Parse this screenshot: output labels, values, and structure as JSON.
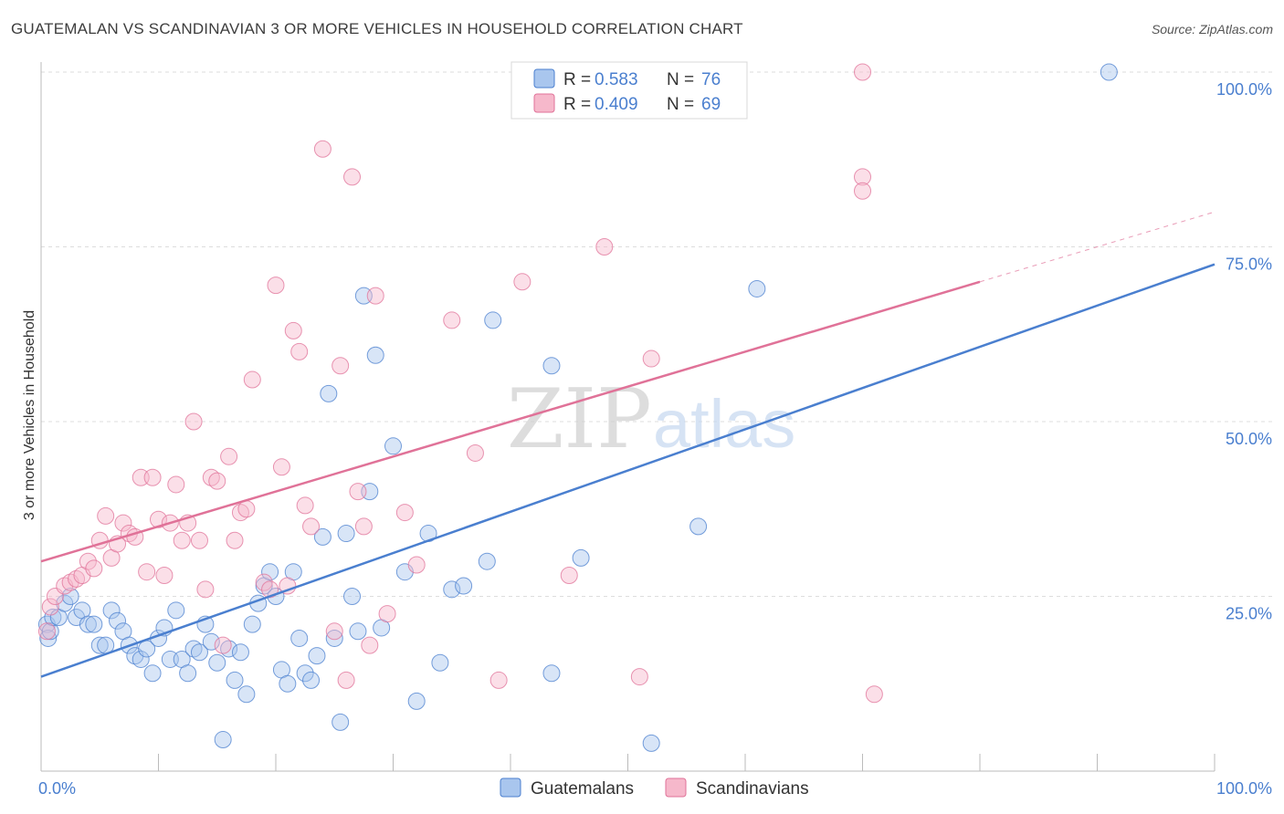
{
  "header": {
    "title": "GUATEMALAN VS SCANDINAVIAN 3 OR MORE VEHICLES IN HOUSEHOLD CORRELATION CHART",
    "source": "Source: ZipAtlas.com"
  },
  "watermark": {
    "zip": "ZIP",
    "atlas": "atlas"
  },
  "chart_data": {
    "type": "scatter",
    "ylabel": "3 or more Vehicles in Household",
    "xlim": [
      0,
      100
    ],
    "ylim": [
      0,
      100
    ],
    "x_tick_labels": {
      "left": "0.0%",
      "right": "100.0%"
    },
    "y_ticks": [
      {
        "value": 25,
        "label": "25.0%"
      },
      {
        "value": 50,
        "label": "50.0%"
      },
      {
        "value": 75,
        "label": "75.0%"
      },
      {
        "value": 100,
        "label": "100.0%"
      }
    ],
    "grid": true,
    "legend_position": "top-center",
    "stats": [
      {
        "r_label": "R =",
        "r_value": "0.583",
        "n_label": "N =",
        "n_value": "76"
      },
      {
        "r_label": "R =",
        "r_value": "0.409",
        "n_label": "N =",
        "n_value": "69"
      }
    ],
    "series": [
      {
        "name": "Guatemalans",
        "color": "#4a7fcf",
        "fill": "#a9c6ee",
        "trend": {
          "x0": 0,
          "y0": 13.5,
          "x1": 100,
          "y1": 72.5
        },
        "points": [
          [
            0.5,
            21
          ],
          [
            0.6,
            19
          ],
          [
            0.8,
            20
          ],
          [
            1,
            22
          ],
          [
            1.5,
            22
          ],
          [
            2,
            24
          ],
          [
            2.5,
            25
          ],
          [
            3,
            22
          ],
          [
            3.5,
            23
          ],
          [
            4,
            21
          ],
          [
            4.5,
            21
          ],
          [
            5,
            18
          ],
          [
            5.5,
            18
          ],
          [
            6,
            23
          ],
          [
            6.5,
            21.5
          ],
          [
            7,
            20
          ],
          [
            7.5,
            18
          ],
          [
            8,
            16.5
          ],
          [
            8.5,
            16
          ],
          [
            9,
            17.5
          ],
          [
            9.5,
            14
          ],
          [
            10,
            19
          ],
          [
            10.5,
            20.5
          ],
          [
            11,
            16
          ],
          [
            11.5,
            23
          ],
          [
            12,
            16
          ],
          [
            12.5,
            14
          ],
          [
            13,
            17.5
          ],
          [
            13.5,
            17
          ],
          [
            14,
            21
          ],
          [
            14.5,
            18.5
          ],
          [
            15,
            15.5
          ],
          [
            15.5,
            4.5
          ],
          [
            16,
            17.5
          ],
          [
            16.5,
            13
          ],
          [
            17,
            17
          ],
          [
            17.5,
            11
          ],
          [
            18,
            21
          ],
          [
            18.5,
            24
          ],
          [
            19,
            26.5
          ],
          [
            19.5,
            28.5
          ],
          [
            20,
            25
          ],
          [
            20.5,
            14.5
          ],
          [
            21,
            12.5
          ],
          [
            21.5,
            28.5
          ],
          [
            22,
            19
          ],
          [
            22.5,
            14
          ],
          [
            23,
            13
          ],
          [
            23.5,
            16.5
          ],
          [
            24,
            33.5
          ],
          [
            24.5,
            54
          ],
          [
            25,
            19
          ],
          [
            25.5,
            7
          ],
          [
            26,
            34
          ],
          [
            26.5,
            25
          ],
          [
            27,
            20
          ],
          [
            27.5,
            68
          ],
          [
            28,
            40
          ],
          [
            28.5,
            59.5
          ],
          [
            29,
            20.5
          ],
          [
            30,
            46.5
          ],
          [
            31,
            28.5
          ],
          [
            32,
            10
          ],
          [
            33,
            34
          ],
          [
            34,
            15.5
          ],
          [
            35,
            26
          ],
          [
            36,
            26.5
          ],
          [
            38,
            30
          ],
          [
            38.5,
            64.5
          ],
          [
            43.5,
            14
          ],
          [
            43.5,
            58
          ],
          [
            46,
            30.5
          ],
          [
            52,
            4
          ],
          [
            56,
            35
          ],
          [
            61,
            69
          ],
          [
            91,
            100
          ]
        ]
      },
      {
        "name": "Scandinavians",
        "color": "#e07298",
        "fill": "#f6b8cb",
        "trend": {
          "x0": 0,
          "y0": 30,
          "x1": 80,
          "y1": 70
        },
        "trend_dashed": {
          "x0": 80,
          "y0": 70,
          "x1": 100,
          "y1": 80
        },
        "points": [
          [
            0.5,
            20
          ],
          [
            0.8,
            23.5
          ],
          [
            1.2,
            25
          ],
          [
            2,
            26.5
          ],
          [
            2.5,
            27
          ],
          [
            3,
            27.5
          ],
          [
            3.5,
            28
          ],
          [
            4,
            30
          ],
          [
            4.5,
            29
          ],
          [
            5,
            33
          ],
          [
            5.5,
            36.5
          ],
          [
            6,
            30.5
          ],
          [
            6.5,
            32.5
          ],
          [
            7,
            35.5
          ],
          [
            7.5,
            34
          ],
          [
            8,
            33.5
          ],
          [
            8.5,
            42
          ],
          [
            9,
            28.5
          ],
          [
            9.5,
            42
          ],
          [
            10,
            36
          ],
          [
            10.5,
            28
          ],
          [
            11,
            35.5
          ],
          [
            11.5,
            41
          ],
          [
            12,
            33
          ],
          [
            12.5,
            35.5
          ],
          [
            13,
            50
          ],
          [
            13.5,
            33
          ],
          [
            14,
            26
          ],
          [
            14.5,
            42
          ],
          [
            15,
            41.5
          ],
          [
            15.5,
            18
          ],
          [
            16,
            45
          ],
          [
            16.5,
            33
          ],
          [
            17,
            37
          ],
          [
            17.5,
            37.5
          ],
          [
            18,
            56
          ],
          [
            19,
            27
          ],
          [
            19.5,
            26
          ],
          [
            20,
            69.5
          ],
          [
            20.5,
            43.5
          ],
          [
            21,
            26.5
          ],
          [
            21.5,
            63
          ],
          [
            22,
            60
          ],
          [
            22.5,
            38
          ],
          [
            23,
            35
          ],
          [
            24,
            89
          ],
          [
            25,
            20
          ],
          [
            25.5,
            58
          ],
          [
            26,
            13
          ],
          [
            26.5,
            85
          ],
          [
            27,
            40
          ],
          [
            27.5,
            35
          ],
          [
            28,
            18
          ],
          [
            28.5,
            68
          ],
          [
            29.5,
            22.5
          ],
          [
            31,
            37
          ],
          [
            32,
            29.5
          ],
          [
            35,
            64.5
          ],
          [
            37,
            45.5
          ],
          [
            39,
            13
          ],
          [
            41,
            70
          ],
          [
            45,
            28
          ],
          [
            48,
            75
          ],
          [
            51,
            13.5
          ],
          [
            52,
            59
          ],
          [
            70,
            85
          ],
          [
            70,
            83
          ],
          [
            70,
            100
          ],
          [
            71,
            11
          ]
        ]
      }
    ]
  },
  "legend_bottom": [
    {
      "label": "Guatemalans"
    },
    {
      "label": "Scandinavians"
    }
  ]
}
